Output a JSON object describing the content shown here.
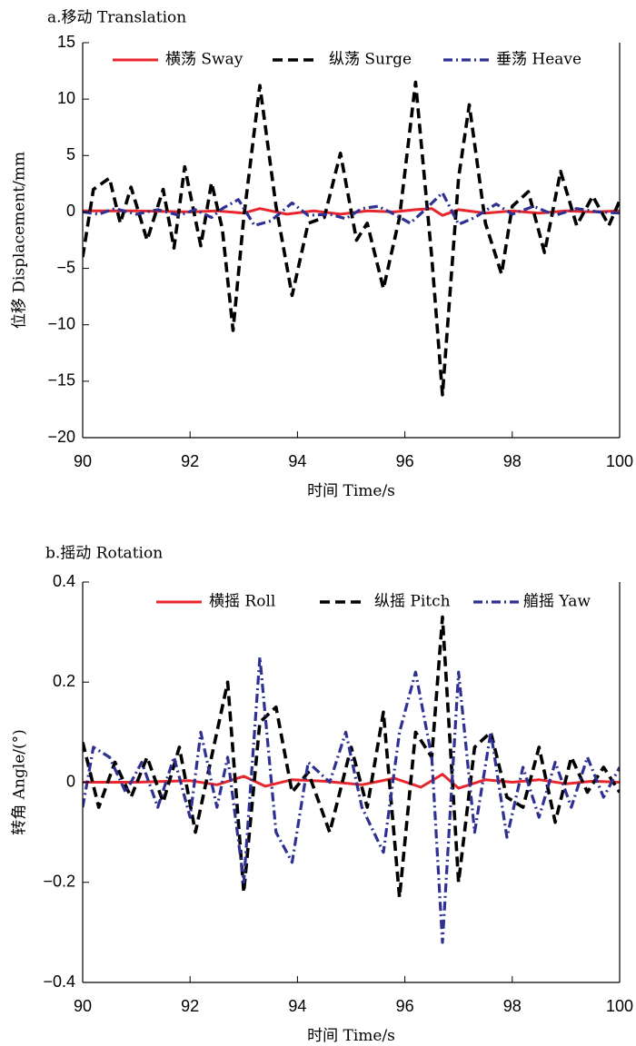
{
  "chart_data": [
    {
      "type": "line",
      "title": "a.移动 Translation",
      "xlabel": "时间 Time/s",
      "ylabel": "位移 Displacement/mm",
      "xlim": [
        90,
        100
      ],
      "ylim": [
        -20,
        15
      ],
      "x_ticks": [
        90,
        92,
        94,
        96,
        98,
        100
      ],
      "y_ticks": [
        -20,
        -15,
        -10,
        -5,
        0,
        5,
        10,
        15
      ],
      "x_tick_labels": [
        "90",
        "92",
        "94",
        "96",
        "98",
        "100"
      ],
      "y_tick_labels": [
        "−20",
        "−15",
        "−10",
        "−5",
        "0",
        "5",
        "10",
        "15"
      ],
      "legend_position": "top",
      "series": [
        {
          "name": "横荡 Sway",
          "color": "#e8262d",
          "style": "solid",
          "x": [
            90,
            91,
            92,
            92.5,
            93,
            93.3,
            93.8,
            94.3,
            94.8,
            95.3,
            95.8,
            96.2,
            96.5,
            96.7,
            97,
            97.5,
            98,
            98.5,
            99,
            99.5,
            100
          ],
          "y": [
            0.1,
            0.1,
            0,
            0.1,
            -0.1,
            0.3,
            -0.2,
            0.1,
            -0.2,
            0.1,
            0,
            0.2,
            0.3,
            -0.3,
            0.2,
            -0.1,
            0.1,
            -0.1,
            0.1,
            0,
            0.1
          ]
        },
        {
          "name": "纵荡 Surge",
          "color": "#000000",
          "style": "dashed",
          "x": [
            90,
            90.2,
            90.5,
            90.7,
            90.9,
            91.2,
            91.5,
            91.7,
            91.9,
            92.2,
            92.4,
            92.6,
            92.8,
            93,
            93.3,
            93.6,
            93.9,
            94.2,
            94.5,
            94.8,
            95.1,
            95.3,
            95.6,
            95.9,
            96.2,
            96.5,
            96.7,
            97,
            97.2,
            97.5,
            97.8,
            98,
            98.3,
            98.6,
            98.9,
            99.2,
            99.5,
            99.8,
            100
          ],
          "y": [
            -4,
            2,
            3,
            -1,
            2.2,
            -2.5,
            2,
            -3.2,
            4,
            -3,
            2.6,
            -1.5,
            -10.5,
            -0.5,
            11.2,
            0.5,
            -7.4,
            -1,
            -0.5,
            5.2,
            -2.5,
            -1,
            -6.8,
            -0.5,
            11.5,
            -4,
            -16.2,
            3,
            9.5,
            -1,
            -5.5,
            0.5,
            1.8,
            -3.6,
            3.6,
            -1.2,
            1.4,
            -1.2,
            1
          ]
        },
        {
          "name": "垂荡 Heave",
          "color": "#2e3192",
          "style": "dashdot",
          "x": [
            90,
            90.3,
            90.6,
            91,
            91.4,
            91.8,
            92.1,
            92.4,
            92.6,
            92.9,
            93.2,
            93.5,
            93.9,
            94.2,
            94.6,
            94.9,
            95.2,
            95.5,
            95.8,
            96.1,
            96.4,
            96.7,
            97,
            97.3,
            97.7,
            98,
            98.4,
            98.8,
            99.2,
            99.6,
            100
          ],
          "y": [
            0,
            -0.2,
            0.3,
            -0.2,
            0.2,
            -0.3,
            0.2,
            -0.5,
            0.3,
            1.1,
            -1.2,
            -0.8,
            0.8,
            -0.3,
            -0.2,
            -0.6,
            0.3,
            0.5,
            -0.2,
            -1,
            0.3,
            1.7,
            -1.1,
            -0.5,
            0.7,
            -0.2,
            0.5,
            -0.3,
            0.3,
            0,
            -0.1
          ]
        }
      ]
    },
    {
      "type": "line",
      "title": "b.摇动 Rotation",
      "xlabel": "时间 Time/s",
      "ylabel": "转角 Angle/(°)",
      "xlim": [
        90,
        100
      ],
      "ylim": [
        -0.4,
        0.4
      ],
      "x_ticks": [
        90,
        92,
        94,
        96,
        98,
        100
      ],
      "y_ticks": [
        -0.4,
        -0.2,
        0,
        0.2,
        0.4
      ],
      "x_tick_labels": [
        "90",
        "92",
        "94",
        "96",
        "98",
        "100"
      ],
      "y_tick_labels": [
        "−0.4",
        "−0.2",
        "0",
        "0.2",
        "0.4"
      ],
      "legend_position": "top",
      "series": [
        {
          "name": "横摇 Roll",
          "color": "#e8262d",
          "style": "solid",
          "x": [
            90,
            91,
            92,
            92.5,
            93,
            93.4,
            93.9,
            94.5,
            95.2,
            95.8,
            96.3,
            96.7,
            97,
            97.5,
            98,
            98.5,
            99,
            99.5,
            100
          ],
          "y": [
            0,
            0,
            0.003,
            -0.005,
            0.012,
            -0.008,
            0.005,
            0.002,
            -0.005,
            0.008,
            -0.01,
            0.016,
            -0.012,
            0.005,
            0,
            0.005,
            -0.003,
            0.002,
            0
          ]
        },
        {
          "name": "纵摇 Pitch",
          "color": "#000000",
          "style": "dashed",
          "x": [
            90,
            90.3,
            90.6,
            90.9,
            91.2,
            91.5,
            91.8,
            92.1,
            92.4,
            92.7,
            93,
            93.3,
            93.6,
            93.9,
            94.2,
            94.6,
            95,
            95.3,
            95.6,
            95.9,
            96.2,
            96.5,
            96.7,
            97,
            97.3,
            97.6,
            97.9,
            98.2,
            98.5,
            98.8,
            99.1,
            99.4,
            99.7,
            100
          ],
          "y": [
            0.08,
            -0.05,
            0.04,
            -0.03,
            0.05,
            -0.04,
            0.07,
            -0.1,
            0.05,
            0.2,
            -0.22,
            0.12,
            0.15,
            -0.02,
            0.02,
            -0.1,
            0.07,
            -0.05,
            0.14,
            -0.23,
            0.1,
            0.05,
            0.33,
            -0.2,
            0.07,
            0.1,
            -0.03,
            -0.05,
            0.07,
            -0.08,
            0.05,
            -0.02,
            0.03,
            -0.02
          ]
        },
        {
          "name": "艏摇 Yaw",
          "color": "#2e3192",
          "style": "dashdot",
          "x": [
            90,
            90.2,
            90.5,
            90.8,
            91.1,
            91.4,
            91.7,
            92,
            92.2,
            92.5,
            92.7,
            93,
            93.3,
            93.6,
            93.9,
            94.2,
            94.6,
            94.9,
            95.2,
            95.6,
            95.9,
            96.2,
            96.5,
            96.7,
            97,
            97.3,
            97.6,
            97.9,
            98.2,
            98.5,
            98.8,
            99.1,
            99.4,
            99.7,
            100
          ],
          "y": [
            -0.05,
            0.07,
            0.05,
            -0.02,
            0.04,
            -0.05,
            0.05,
            -0.07,
            0.1,
            -0.05,
            0.05,
            -0.2,
            0.25,
            -0.1,
            -0.16,
            0.04,
            0,
            0.1,
            -0.05,
            -0.14,
            0.1,
            0.22,
            0.05,
            -0.32,
            0.22,
            -0.1,
            0.1,
            -0.11,
            0.03,
            -0.07,
            0.04,
            -0.05,
            0.05,
            -0.03,
            0.03
          ]
        }
      ]
    }
  ]
}
